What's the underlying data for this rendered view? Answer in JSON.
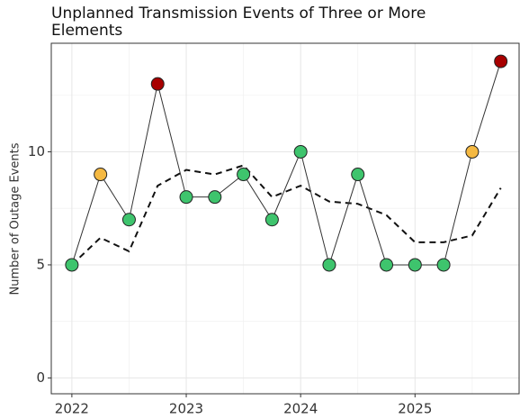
{
  "chart_data": {
    "type": "line",
    "title": "Unplanned Transmission Events of Three or More Elements",
    "y_label": "Number of Outage Events",
    "x": [
      2022,
      2022.25,
      2022.5,
      2022.75,
      2023,
      2023.25,
      2023.5,
      2023.75,
      2024,
      2024.25,
      2024.5,
      2024.75,
      2025,
      2025.25,
      2025.5,
      2025.75
    ],
    "series": [
      {
        "color": "#333333",
        "values": [
          5,
          9,
          7,
          13,
          8,
          8,
          9,
          7,
          10,
          5,
          9,
          5,
          5,
          5,
          10,
          14
        ],
        "point_colors": [
          "#3ec46d",
          "#f5b942",
          "#3ec46d",
          "#a80000",
          "#3ec46d",
          "#3ec46d",
          "#3ec46d",
          "#3ec46d",
          "#3ec46d",
          "#3ec46d",
          "#3ec46d",
          "#3ec46d",
          "#3ec46d",
          "#3ec46d",
          "#f5b942",
          "#a80000"
        ]
      },
      {
        "color": "#111111",
        "dashed": true,
        "values": [
          5,
          6.2,
          5.6,
          8.5,
          9.2,
          9.0,
          9.4,
          8.0,
          8.5,
          7.8,
          7.7,
          7.2,
          6.0,
          6.0,
          6.3,
          8.4
        ]
      }
    ],
    "xlim": [
      2021.82,
      2025.91
    ],
    "ylim": [
      -0.7,
      14.8
    ],
    "xticks": [
      2022,
      2023,
      2024,
      2025
    ],
    "yticks": [
      0,
      5,
      10
    ],
    "x_minor_ticks": [
      2022.5,
      2023.5,
      2024.5,
      2025.5
    ],
    "y_minor_ticks": [
      2.5,
      7.5,
      12.5
    ],
    "grid": true
  }
}
